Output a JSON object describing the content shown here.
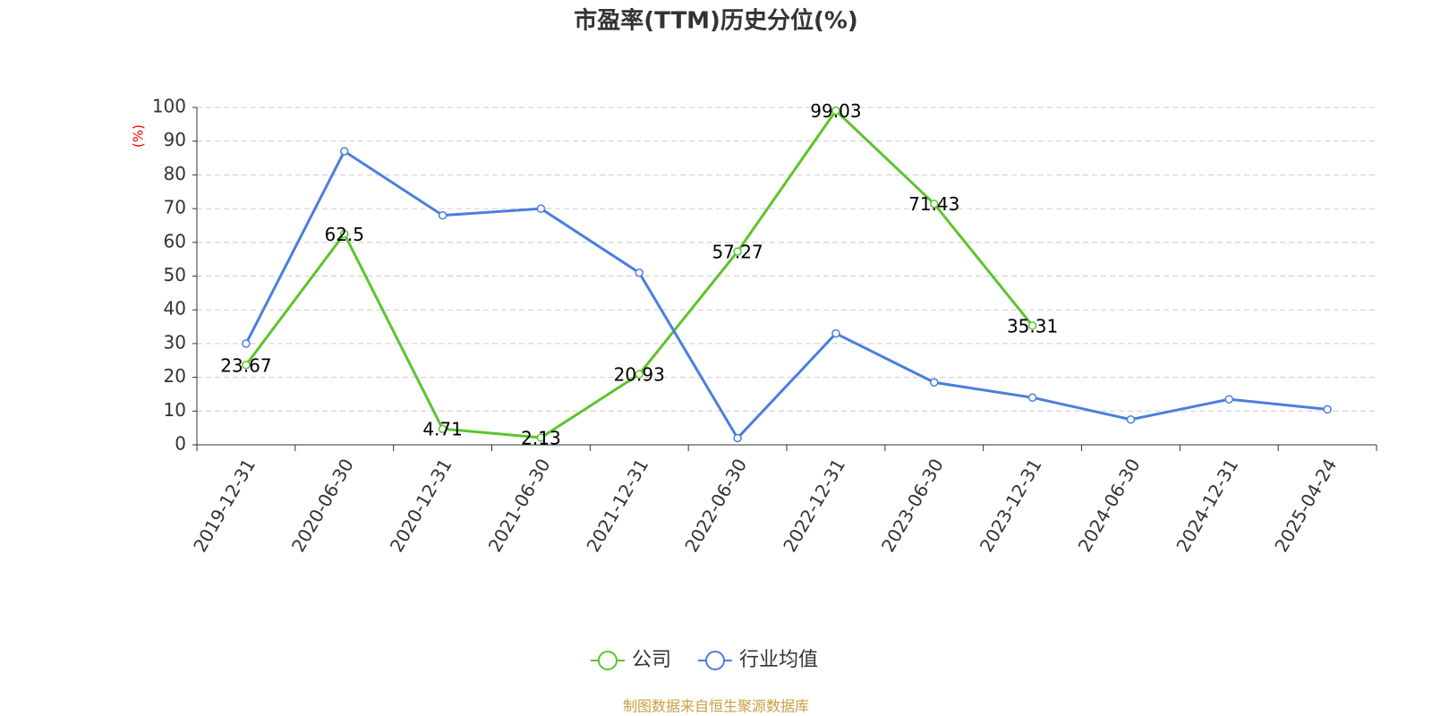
{
  "chart_data": {
    "type": "line",
    "title": "市盈率(TTM)历史分位(%)",
    "y_label": "(%)",
    "categories": [
      "2019-12-31",
      "2020-06-30",
      "2020-12-31",
      "2021-06-30",
      "2021-12-31",
      "2022-06-30",
      "2022-12-31",
      "2023-06-30",
      "2023-12-31",
      "2024-06-30",
      "2024-12-31",
      "2025-04-24"
    ],
    "series": [
      {
        "name": "公司",
        "color": "#5cc42c",
        "values": [
          23.67,
          62.5,
          4.71,
          2.13,
          20.93,
          57.27,
          99.03,
          71.43,
          35.31,
          null,
          null,
          null
        ]
      },
      {
        "name": "行业均值",
        "color": "#4a7fdc",
        "values": [
          30,
          87,
          68,
          70,
          51,
          2,
          33,
          18.5,
          14,
          7.5,
          13.5,
          10.5
        ]
      }
    ],
    "ylim": [
      0,
      100
    ],
    "yticks": [
      0,
      10,
      20,
      30,
      40,
      50,
      60,
      70,
      80,
      90,
      100
    ],
    "grid": true,
    "legend": "bottom",
    "source": "制图数据来自恒生聚源数据库"
  }
}
